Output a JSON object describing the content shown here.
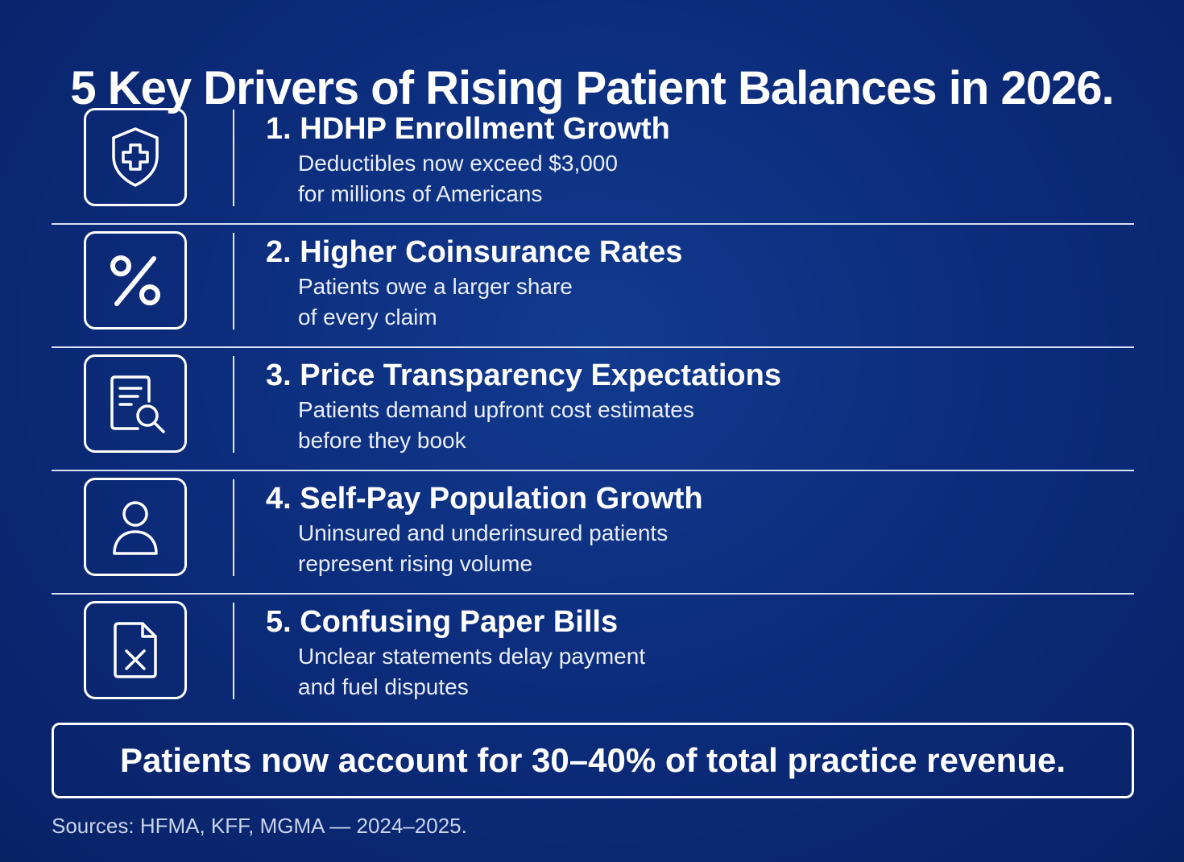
{
  "title": "5 Key Drivers of Rising Patient Balances in 2026.",
  "drivers": [
    {
      "icon": "shield-plus-icon",
      "title": "1. HDHP Enrollment Growth",
      "desc_line1": "Deductibles now exceed $3,000",
      "desc_line2": "for millions of Americans"
    },
    {
      "icon": "percent-icon",
      "title": "2. Higher Coinsurance Rates",
      "desc_line1": "Patients owe a larger share",
      "desc_line2": "of every claim"
    },
    {
      "icon": "document-search-icon",
      "title": "3. Price Transparency Expectations",
      "desc_line1": "Patients demand upfront cost estimates",
      "desc_line2": "before they book"
    },
    {
      "icon": "person-icon",
      "title": "4. Self-Pay Population Growth",
      "desc_line1": "Uninsured and underinsured patients",
      "desc_line2": "represent rising volume"
    },
    {
      "icon": "document-x-icon",
      "title": "5. Confusing Paper Bills",
      "desc_line1": "Unclear statements delay payment",
      "desc_line2": "and fuel disputes"
    }
  ],
  "callout": "Patients now account for 30–40% of total practice revenue.",
  "sources": "Sources: HFMA, KFF, MGMA — 2024–2025.",
  "colors": {
    "background": "#0b2a78",
    "foreground": "#ffffff"
  }
}
